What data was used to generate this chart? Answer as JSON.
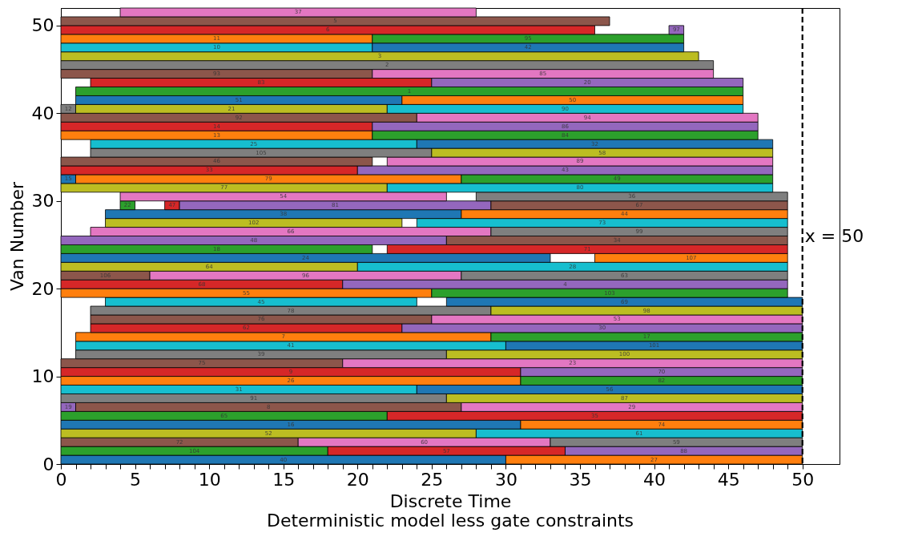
{
  "chart_data": {
    "type": "bar",
    "orientation": "horizontal",
    "title": "Deterministic model less gate constraints",
    "xlabel": "Discrete Time",
    "ylabel": "Van Number",
    "series": [
      {
        "name": "40",
        "color": "#1f77b4",
        "x": [
          0.5
        ],
        "base": [
          0
        ],
        "values": [
          30
        ]
      },
      {
        "name": "27",
        "color": "#ff7f0e",
        "x": [
          0.5
        ],
        "base": [
          30
        ],
        "values": [
          20
        ]
      },
      {
        "name": "104",
        "color": "#2ca02c",
        "x": [
          1.5
        ],
        "base": [
          0
        ],
        "values": [
          18
        ]
      },
      {
        "name": "57",
        "color": "#d62728",
        "x": [
          1.5
        ],
        "base": [
          18
        ],
        "values": [
          16
        ]
      },
      {
        "name": "88",
        "color": "#9467bd",
        "x": [
          1.5
        ],
        "base": [
          34
        ],
        "values": [
          16
        ]
      },
      {
        "name": "72",
        "color": "#8c564b",
        "x": [
          2.5
        ],
        "base": [
          0
        ],
        "values": [
          16
        ]
      },
      {
        "name": "60",
        "color": "#e377c2",
        "x": [
          2.5
        ],
        "base": [
          16
        ],
        "values": [
          17
        ]
      },
      {
        "name": "59",
        "color": "#7f7f7f",
        "x": [
          2.5
        ],
        "base": [
          33
        ],
        "values": [
          17
        ]
      },
      {
        "name": "52",
        "color": "#bcbd22",
        "x": [
          3.5
        ],
        "base": [
          0
        ],
        "values": [
          28
        ]
      },
      {
        "name": "61",
        "color": "#17becf",
        "x": [
          3.5
        ],
        "base": [
          28
        ],
        "values": [
          22
        ]
      },
      {
        "name": "16",
        "color": "#1f77b4",
        "x": [
          4.5
        ],
        "base": [
          0
        ],
        "values": [
          31
        ]
      },
      {
        "name": "74",
        "color": "#ff7f0e",
        "x": [
          4.5
        ],
        "base": [
          31
        ],
        "values": [
          19
        ]
      },
      {
        "name": "65",
        "color": "#2ca02c",
        "x": [
          5.5
        ],
        "base": [
          0
        ],
        "values": [
          22
        ]
      },
      {
        "name": "35",
        "color": "#d62728",
        "x": [
          5.5
        ],
        "base": [
          22
        ],
        "values": [
          28
        ]
      },
      {
        "name": "19",
        "color": "#9467bd",
        "x": [
          6.5
        ],
        "base": [
          0
        ],
        "values": [
          1
        ]
      },
      {
        "name": "8",
        "color": "#8c564b",
        "x": [
          6.5
        ],
        "base": [
          1
        ],
        "values": [
          26
        ]
      },
      {
        "name": "29",
        "color": "#e377c2",
        "x": [
          6.5
        ],
        "base": [
          27
        ],
        "values": [
          23
        ]
      },
      {
        "name": "91",
        "color": "#7f7f7f",
        "x": [
          7.5
        ],
        "base": [
          0
        ],
        "values": [
          26
        ]
      },
      {
        "name": "87",
        "color": "#bcbd22",
        "x": [
          7.5
        ],
        "base": [
          26
        ],
        "values": [
          24
        ]
      },
      {
        "name": "31",
        "color": "#17becf",
        "x": [
          8.5
        ],
        "base": [
          0
        ],
        "values": [
          24
        ]
      },
      {
        "name": "56",
        "color": "#1f77b4",
        "x": [
          8.5
        ],
        "base": [
          24
        ],
        "values": [
          26
        ]
      },
      {
        "name": "26",
        "color": "#ff7f0e",
        "x": [
          9.5
        ],
        "base": [
          0
        ],
        "values": [
          31
        ]
      },
      {
        "name": "82",
        "color": "#2ca02c",
        "x": [
          9.5
        ],
        "base": [
          31
        ],
        "values": [
          19
        ]
      },
      {
        "name": "9",
        "color": "#d62728",
        "x": [
          10.5
        ],
        "base": [
          0
        ],
        "values": [
          31
        ]
      },
      {
        "name": "70",
        "color": "#9467bd",
        "x": [
          10.5
        ],
        "base": [
          31
        ],
        "values": [
          19
        ]
      },
      {
        "name": "75",
        "color": "#8c564b",
        "x": [
          11.5
        ],
        "base": [
          0
        ],
        "values": [
          19
        ]
      },
      {
        "name": "23",
        "color": "#e377c2",
        "x": [
          11.5
        ],
        "base": [
          19
        ],
        "values": [
          31
        ]
      },
      {
        "name": "39",
        "color": "#7f7f7f",
        "x": [
          12.5
        ],
        "base": [
          1
        ],
        "values": [
          25
        ]
      },
      {
        "name": "100",
        "color": "#bcbd22",
        "x": [
          12.5
        ],
        "base": [
          26
        ],
        "values": [
          24
        ]
      },
      {
        "name": "41",
        "color": "#17becf",
        "x": [
          13.5
        ],
        "base": [
          1
        ],
        "values": [
          29
        ]
      },
      {
        "name": "101",
        "color": "#1f77b4",
        "x": [
          13.5
        ],
        "base": [
          30
        ],
        "values": [
          20
        ]
      },
      {
        "name": "7",
        "color": "#ff7f0e",
        "x": [
          14.5
        ],
        "base": [
          1
        ],
        "values": [
          28
        ]
      },
      {
        "name": "17",
        "color": "#2ca02c",
        "x": [
          14.5
        ],
        "base": [
          29
        ],
        "values": [
          21
        ]
      },
      {
        "name": "62",
        "color": "#d62728",
        "x": [
          15.5
        ],
        "base": [
          2
        ],
        "values": [
          21
        ]
      },
      {
        "name": "30",
        "color": "#9467bd",
        "x": [
          15.5
        ],
        "base": [
          23
        ],
        "values": [
          27
        ]
      },
      {
        "name": "76",
        "color": "#8c564b",
        "x": [
          16.5
        ],
        "base": [
          2
        ],
        "values": [
          23
        ]
      },
      {
        "name": "53",
        "color": "#e377c2",
        "x": [
          16.5
        ],
        "base": [
          25
        ],
        "values": [
          25
        ]
      },
      {
        "name": "78",
        "color": "#7f7f7f",
        "x": [
          17.5
        ],
        "base": [
          2
        ],
        "values": [
          27
        ]
      },
      {
        "name": "98",
        "color": "#bcbd22",
        "x": [
          17.5
        ],
        "base": [
          29
        ],
        "values": [
          21
        ]
      },
      {
        "name": "45",
        "color": "#17becf",
        "x": [
          18.5
        ],
        "base": [
          3
        ],
        "values": [
          21
        ]
      },
      {
        "name": "69",
        "color": "#1f77b4",
        "x": [
          18.5
        ],
        "base": [
          26
        ],
        "values": [
          24
        ]
      },
      {
        "name": "55",
        "color": "#ff7f0e",
        "x": [
          19.5
        ],
        "base": [
          0
        ],
        "values": [
          25
        ]
      },
      {
        "name": "103",
        "color": "#2ca02c",
        "x": [
          19.5
        ],
        "base": [
          25
        ],
        "values": [
          24
        ]
      },
      {
        "name": "68",
        "color": "#d62728",
        "x": [
          20.5
        ],
        "base": [
          0
        ],
        "values": [
          19
        ]
      },
      {
        "name": "4",
        "color": "#9467bd",
        "x": [
          20.5
        ],
        "base": [
          19
        ],
        "values": [
          30
        ]
      },
      {
        "name": "106",
        "color": "#8c564b",
        "x": [
          21.5
        ],
        "base": [
          0
        ],
        "values": [
          6
        ]
      },
      {
        "name": "96",
        "color": "#e377c2",
        "x": [
          21.5
        ],
        "base": [
          6
        ],
        "values": [
          21
        ]
      },
      {
        "name": "63",
        "color": "#7f7f7f",
        "x": [
          21.5
        ],
        "base": [
          27
        ],
        "values": [
          22
        ]
      },
      {
        "name": "64",
        "color": "#bcbd22",
        "x": [
          22.5
        ],
        "base": [
          0
        ],
        "values": [
          20
        ]
      },
      {
        "name": "28",
        "color": "#17becf",
        "x": [
          22.5
        ],
        "base": [
          20
        ],
        "values": [
          29
        ]
      },
      {
        "name": "24",
        "color": "#1f77b4",
        "x": [
          23.5
        ],
        "base": [
          0
        ],
        "values": [
          33
        ]
      },
      {
        "name": "107",
        "color": "#ff7f0e",
        "x": [
          23.5
        ],
        "base": [
          36
        ],
        "values": [
          13
        ]
      },
      {
        "name": "18",
        "color": "#2ca02c",
        "x": [
          24.5
        ],
        "base": [
          0
        ],
        "values": [
          21
        ]
      },
      {
        "name": "71",
        "color": "#d62728",
        "x": [
          24.5
        ],
        "base": [
          22
        ],
        "values": [
          27
        ]
      },
      {
        "name": "48",
        "color": "#9467bd",
        "x": [
          25.5
        ],
        "base": [
          0
        ],
        "values": [
          26
        ]
      },
      {
        "name": "34",
        "color": "#8c564b",
        "x": [
          25.5
        ],
        "base": [
          26
        ],
        "values": [
          23
        ]
      },
      {
        "name": "66",
        "color": "#e377c2",
        "x": [
          26.5
        ],
        "base": [
          2
        ],
        "values": [
          27
        ]
      },
      {
        "name": "99",
        "color": "#7f7f7f",
        "x": [
          26.5
        ],
        "base": [
          29
        ],
        "values": [
          20
        ]
      },
      {
        "name": "102",
        "color": "#bcbd22",
        "x": [
          27.5
        ],
        "base": [
          3
        ],
        "values": [
          20
        ]
      },
      {
        "name": "73",
        "color": "#17becf",
        "x": [
          27.5
        ],
        "base": [
          24
        ],
        "values": [
          25
        ]
      },
      {
        "name": "38",
        "color": "#1f77b4",
        "x": [
          28.5
        ],
        "base": [
          3
        ],
        "values": [
          24
        ]
      },
      {
        "name": "44",
        "color": "#ff7f0e",
        "x": [
          28.5
        ],
        "base": [
          27
        ],
        "values": [
          22
        ]
      },
      {
        "name": "22",
        "color": "#2ca02c",
        "x": [
          29.5
        ],
        "base": [
          4
        ],
        "values": [
          1
        ]
      },
      {
        "name": "47",
        "color": "#d62728",
        "x": [
          29.5
        ],
        "base": [
          7
        ],
        "values": [
          1
        ]
      },
      {
        "name": "81",
        "color": "#9467bd",
        "x": [
          29.5
        ],
        "base": [
          8
        ],
        "values": [
          21
        ]
      },
      {
        "name": "67",
        "color": "#8c564b",
        "x": [
          29.5
        ],
        "base": [
          29
        ],
        "values": [
          20
        ]
      },
      {
        "name": "54",
        "color": "#e377c2",
        "x": [
          30.5
        ],
        "base": [
          4
        ],
        "values": [
          22
        ]
      },
      {
        "name": "36",
        "color": "#7f7f7f",
        "x": [
          30.5
        ],
        "base": [
          28
        ],
        "values": [
          21
        ]
      },
      {
        "name": "77",
        "color": "#bcbd22",
        "x": [
          31.5
        ],
        "base": [
          0
        ],
        "values": [
          22
        ]
      },
      {
        "name": "80",
        "color": "#17becf",
        "x": [
          31.5
        ],
        "base": [
          22
        ],
        "values": [
          26
        ]
      },
      {
        "name": "15",
        "color": "#1f77b4",
        "x": [
          32.5
        ],
        "base": [
          0
        ],
        "values": [
          1
        ]
      },
      {
        "name": "79",
        "color": "#ff7f0e",
        "x": [
          32.5
        ],
        "base": [
          1
        ],
        "values": [
          26
        ]
      },
      {
        "name": "49",
        "color": "#2ca02c",
        "x": [
          32.5
        ],
        "base": [
          27
        ],
        "values": [
          21
        ]
      },
      {
        "name": "33",
        "color": "#d62728",
        "x": [
          33.5
        ],
        "base": [
          0
        ],
        "values": [
          20
        ]
      },
      {
        "name": "43",
        "color": "#9467bd",
        "x": [
          33.5
        ],
        "base": [
          20
        ],
        "values": [
          28
        ]
      },
      {
        "name": "46",
        "color": "#8c564b",
        "x": [
          34.5
        ],
        "base": [
          0
        ],
        "values": [
          21
        ]
      },
      {
        "name": "89",
        "color": "#e377c2",
        "x": [
          34.5
        ],
        "base": [
          22
        ],
        "values": [
          26
        ]
      },
      {
        "name": "105",
        "color": "#7f7f7f",
        "x": [
          35.5
        ],
        "base": [
          2
        ],
        "values": [
          23
        ]
      },
      {
        "name": "58",
        "color": "#bcbd22",
        "x": [
          35.5
        ],
        "base": [
          25
        ],
        "values": [
          23
        ]
      },
      {
        "name": "25",
        "color": "#17becf",
        "x": [
          36.5
        ],
        "base": [
          2
        ],
        "values": [
          22
        ]
      },
      {
        "name": "32",
        "color": "#1f77b4",
        "x": [
          36.5
        ],
        "base": [
          24
        ],
        "values": [
          24
        ]
      },
      {
        "name": "13",
        "color": "#ff7f0e",
        "x": [
          37.5
        ],
        "base": [
          0
        ],
        "values": [
          21
        ]
      },
      {
        "name": "84",
        "color": "#2ca02c",
        "x": [
          37.5
        ],
        "base": [
          21
        ],
        "values": [
          26
        ]
      },
      {
        "name": "14",
        "color": "#d62728",
        "x": [
          38.5
        ],
        "base": [
          0
        ],
        "values": [
          21
        ]
      },
      {
        "name": "86",
        "color": "#9467bd",
        "x": [
          38.5
        ],
        "base": [
          21
        ],
        "values": [
          26
        ]
      },
      {
        "name": "92",
        "color": "#8c564b",
        "x": [
          39.5
        ],
        "base": [
          0
        ],
        "values": [
          24
        ]
      },
      {
        "name": "94",
        "color": "#e377c2",
        "x": [
          39.5
        ],
        "base": [
          24
        ],
        "values": [
          23
        ]
      },
      {
        "name": "12",
        "color": "#7f7f7f",
        "x": [
          40.5
        ],
        "base": [
          0
        ],
        "values": [
          1
        ]
      },
      {
        "name": "21",
        "color": "#bcbd22",
        "x": [
          40.5
        ],
        "base": [
          1
        ],
        "values": [
          21
        ]
      },
      {
        "name": "90",
        "color": "#17becf",
        "x": [
          40.5
        ],
        "base": [
          22
        ],
        "values": [
          24
        ]
      },
      {
        "name": "51",
        "color": "#1f77b4",
        "x": [
          41.5
        ],
        "base": [
          1
        ],
        "values": [
          22
        ]
      },
      {
        "name": "50",
        "color": "#ff7f0e",
        "x": [
          41.5
        ],
        "base": [
          23
        ],
        "values": [
          23
        ]
      },
      {
        "name": "1",
        "color": "#2ca02c",
        "x": [
          42.5
        ],
        "base": [
          1
        ],
        "values": [
          45
        ]
      },
      {
        "name": "83",
        "color": "#d62728",
        "x": [
          43.5
        ],
        "base": [
          2
        ],
        "values": [
          23
        ]
      },
      {
        "name": "20",
        "color": "#9467bd",
        "x": [
          43.5
        ],
        "base": [
          25
        ],
        "values": [
          21
        ]
      },
      {
        "name": "93",
        "color": "#8c564b",
        "x": [
          44.5
        ],
        "base": [
          0
        ],
        "values": [
          21
        ]
      },
      {
        "name": "85",
        "color": "#e377c2",
        "x": [
          44.5
        ],
        "base": [
          21
        ],
        "values": [
          23
        ]
      },
      {
        "name": "2",
        "color": "#7f7f7f",
        "x": [
          45.5
        ],
        "base": [
          0
        ],
        "values": [
          44
        ]
      },
      {
        "name": "3",
        "color": "#bcbd22",
        "x": [
          46.5
        ],
        "base": [
          0
        ],
        "values": [
          43
        ]
      },
      {
        "name": "10",
        "color": "#17becf",
        "x": [
          47.5
        ],
        "base": [
          0
        ],
        "values": [
          21
        ]
      },
      {
        "name": "42",
        "color": "#1f77b4",
        "x": [
          47.5
        ],
        "base": [
          21
        ],
        "values": [
          21
        ]
      },
      {
        "name": "11",
        "color": "#ff7f0e",
        "x": [
          48.5
        ],
        "base": [
          0
        ],
        "values": [
          21
        ]
      },
      {
        "name": "95",
        "color": "#2ca02c",
        "x": [
          48.5
        ],
        "base": [
          21
        ],
        "values": [
          21
        ]
      },
      {
        "name": "6",
        "color": "#d62728",
        "x": [
          49.5
        ],
        "base": [
          0
        ],
        "values": [
          36
        ]
      },
      {
        "name": "97",
        "color": "#9467bd",
        "x": [
          49.5
        ],
        "base": [
          41
        ],
        "values": [
          1
        ]
      },
      {
        "name": "5",
        "color": "#8c564b",
        "x": [
          50.5
        ],
        "base": [
          0
        ],
        "values": [
          37
        ]
      },
      {
        "name": "37",
        "color": "#e377c2",
        "x": [
          51.5
        ],
        "base": [
          4
        ],
        "values": [
          24
        ]
      }
    ],
    "xlim": [
      0,
      52.5
    ],
    "xticks": [
      0,
      {
        "value": 1,
        "label": null
      },
      {
        "value": 2,
        "label": null
      },
      {
        "value": 3,
        "label": null
      },
      {
        "value": 4,
        "label": null
      },
      5,
      {
        "value": 6,
        "label": null
      },
      {
        "value": 7,
        "label": null
      },
      {
        "value": 8,
        "label": null
      },
      {
        "value": 9,
        "label": null
      },
      10,
      {
        "value": 11,
        "label": null
      },
      {
        "value": 12,
        "label": null
      },
      {
        "value": 13,
        "label": null
      },
      {
        "value": 14,
        "label": null
      },
      15,
      {
        "value": 16,
        "label": null
      },
      {
        "value": 17,
        "label": null
      },
      {
        "value": 18,
        "label": null
      },
      {
        "value": 19,
        "label": null
      },
      20,
      {
        "value": 21,
        "label": null
      },
      {
        "value": 22,
        "label": null
      },
      {
        "value": 23,
        "label": null
      },
      {
        "value": 24,
        "label": null
      },
      25,
      {
        "value": 26,
        "label": null
      },
      {
        "value": 27,
        "label": null
      },
      {
        "value": 28,
        "label": null
      },
      {
        "value": 29,
        "label": null
      },
      30,
      {
        "value": 31,
        "label": null
      },
      {
        "value": 32,
        "label": null
      },
      {
        "value": 33,
        "label": null
      },
      {
        "value": 34,
        "label": null
      },
      35,
      {
        "value": 36,
        "label": null
      },
      {
        "value": 37,
        "label": null
      },
      {
        "value": 38,
        "label": null
      },
      {
        "value": 39,
        "label": null
      },
      40,
      {
        "value": 41,
        "label": null
      },
      {
        "value": 42,
        "label": null
      },
      {
        "value": 43,
        "label": null
      },
      {
        "value": 44,
        "label": null
      },
      45,
      {
        "value": 46,
        "label": null
      },
      {
        "value": 47,
        "label": null
      },
      {
        "value": 48,
        "label": null
      },
      {
        "value": 49,
        "label": null
      },
      50
    ],
    "ylim": [
      0,
      52
    ],
    "yticks": [
      0,
      10,
      20,
      30,
      40,
      50
    ],
    "ref_lines": [
      {
        "axis": "x",
        "value": 50,
        "label": "x = 50",
        "color": "#000000",
        "line_style": "dashed"
      }
    ]
  }
}
